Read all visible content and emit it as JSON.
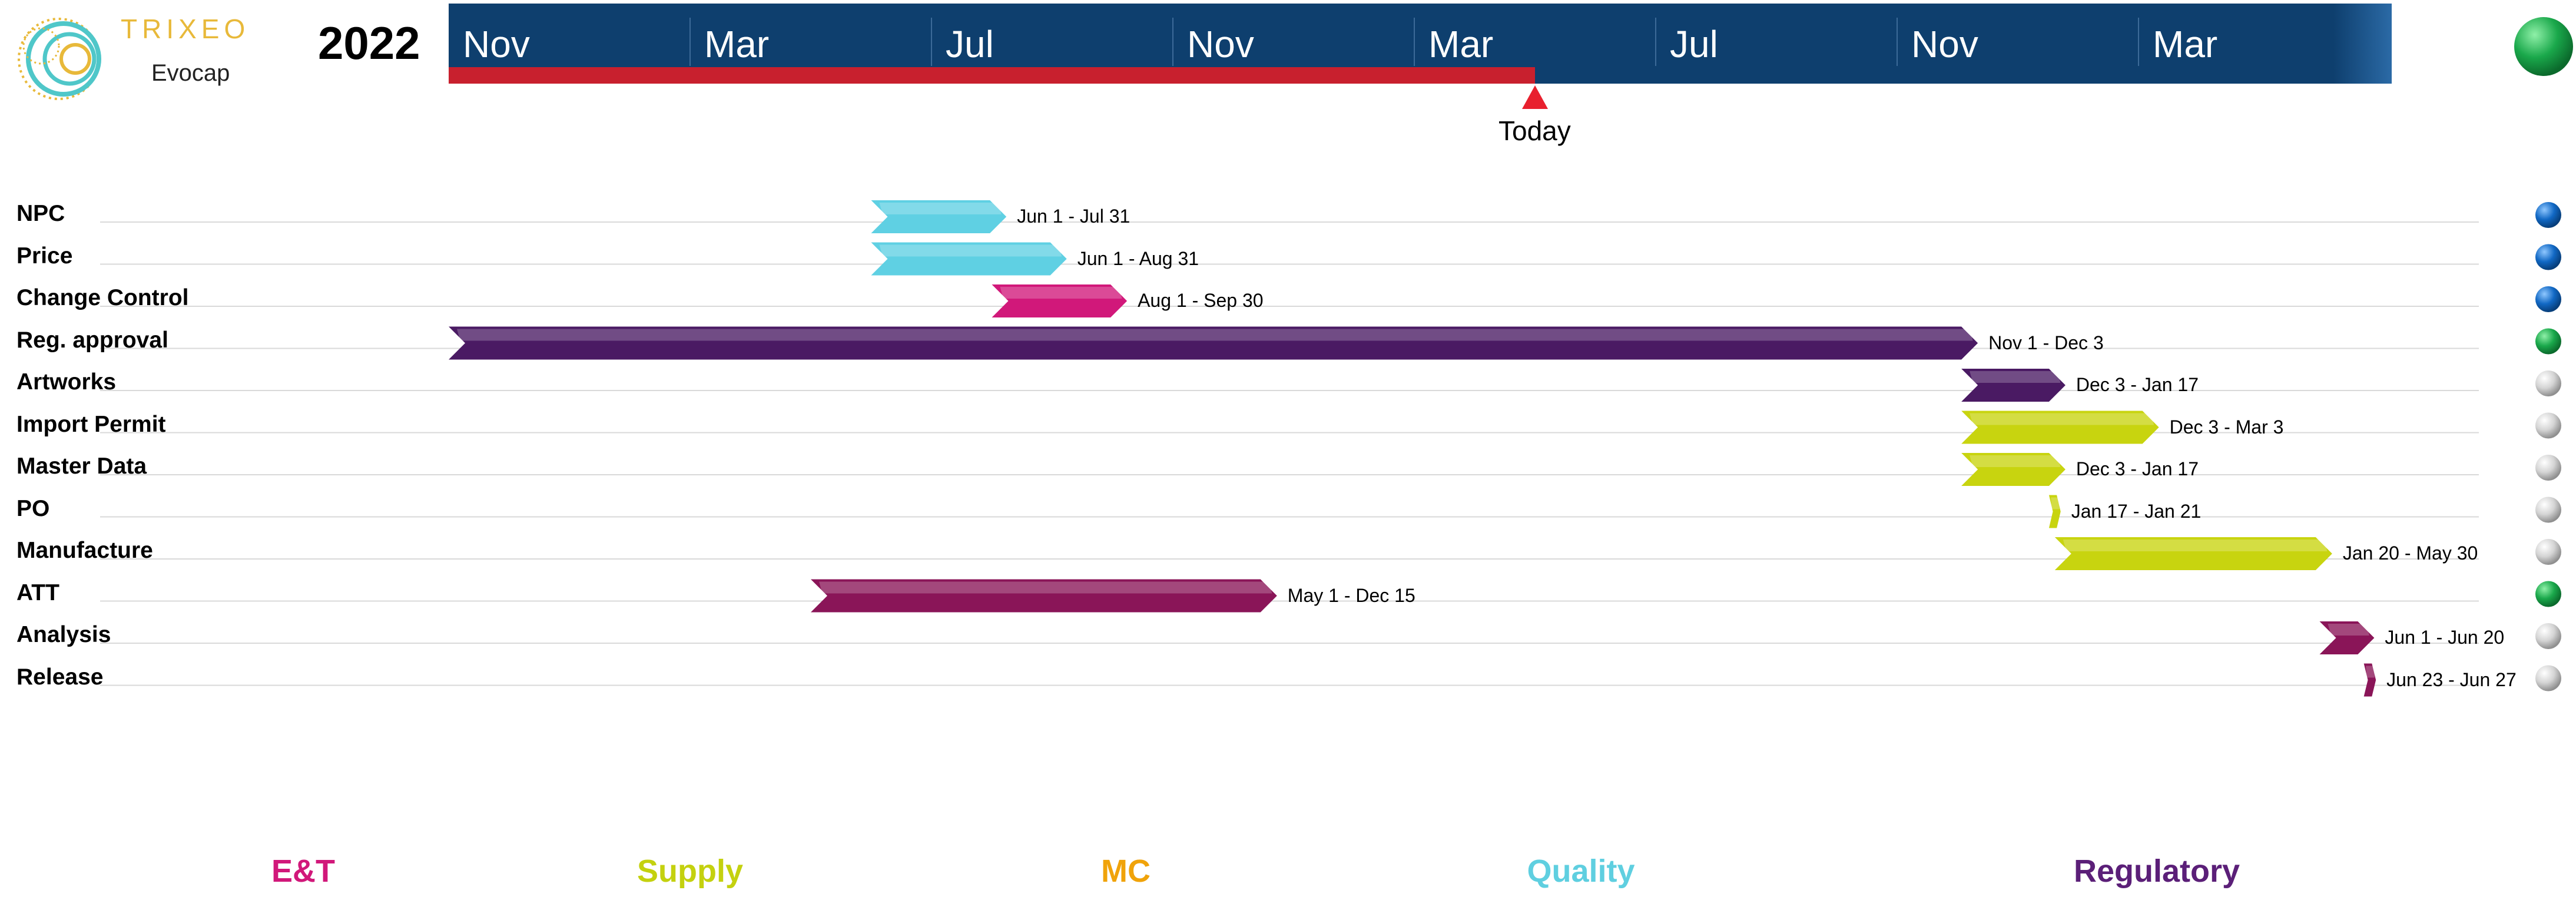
{
  "brand": {
    "name": "TRIXEO",
    "subtitle": "Evocap",
    "year": "2022",
    "logo_icon": "spiral-globe-logo",
    "status_icon": "green-status-indicator"
  },
  "chart_data": {
    "type": "gantt",
    "timeline_ticks": [
      "Nov",
      "Mar",
      "Jul",
      "Nov",
      "Mar",
      "Jul",
      "Nov",
      "Mar"
    ],
    "timeline_start": "2021-11-01",
    "today_label": "Today",
    "today_date": "2023-05-01",
    "tasks": [
      {
        "name": "NPC",
        "range_label": "Jun 1 - Jul 31",
        "start": "2022-06-01",
        "end": "2022-07-31",
        "category": "Quality",
        "status": "blue"
      },
      {
        "name": "Price",
        "range_label": "Jun 1 - Aug 31",
        "start": "2022-06-01",
        "end": "2022-08-31",
        "category": "Quality",
        "status": "blue"
      },
      {
        "name": "Change Control",
        "range_label": "Aug 1 - Sep 30",
        "start": "2022-08-01",
        "end": "2022-09-30",
        "category": "E&T",
        "status": "blue"
      },
      {
        "name": "Reg. approval",
        "range_label": "Nov 1 - Dec 3",
        "start": "2021-11-01",
        "end": "2023-12-03",
        "category": "Regulatory",
        "status": "green"
      },
      {
        "name": "Artworks",
        "range_label": "Dec 3 - Jan 17",
        "start": "2023-12-03",
        "end": "2024-01-17",
        "category": "Regulatory",
        "status": "gray"
      },
      {
        "name": "Import Permit",
        "range_label": "Dec 3 - Mar 3",
        "start": "2023-12-03",
        "end": "2024-03-03",
        "category": "Supply",
        "status": "gray"
      },
      {
        "name": "Master Data",
        "range_label": "Dec 3 - Jan 17",
        "start": "2023-12-03",
        "end": "2024-01-17",
        "category": "Supply",
        "status": "gray"
      },
      {
        "name": "PO",
        "range_label": "Jan 17 - Jan 21",
        "start": "2024-01-17",
        "end": "2024-01-21",
        "category": "Supply",
        "status": "gray"
      },
      {
        "name": "Manufacture",
        "range_label": "Jan 20 - May 30",
        "start": "2024-01-20",
        "end": "2024-05-30",
        "category": "Supply",
        "status": "gray"
      },
      {
        "name": "ATT",
        "range_label": "May 1 - Dec 15",
        "start": "2022-05-01",
        "end": "2022-12-15",
        "category": "Analysis",
        "status": "green"
      },
      {
        "name": "Analysis",
        "range_label": "Jun 1 - Jun 20",
        "start": "2024-06-01",
        "end": "2024-06-20",
        "category": "Analysis",
        "status": "gray"
      },
      {
        "name": "Release",
        "range_label": "Jun 23 - Jun 27",
        "start": "2024-06-23",
        "end": "2024-06-27",
        "category": "Analysis",
        "status": "gray"
      }
    ],
    "legend": [
      {
        "name": "E&T",
        "color": "#d1187a"
      },
      {
        "name": "Supply",
        "color": "#c4d10f"
      },
      {
        "name": "MC",
        "color": "#f0a30a"
      },
      {
        "name": "Quality",
        "color": "#5fcfe0"
      },
      {
        "name": "Regulatory",
        "color": "#5b1f78"
      }
    ]
  },
  "colors": {
    "header_band": "#0e3f6e",
    "progress_bar": "#c8202e",
    "today_marker": "#e8202e",
    "row_line": "#d9d9d9",
    "Quality": "#5fd0e3",
    "E&T": "#d1187a",
    "Regulatory": "#4a1a63",
    "Supply": "#c8d40f",
    "Analysis": "#8a1558",
    "status_blue": "#1168c4",
    "status_green": "#1aa84b",
    "status_gray": "#cfcfcf"
  }
}
